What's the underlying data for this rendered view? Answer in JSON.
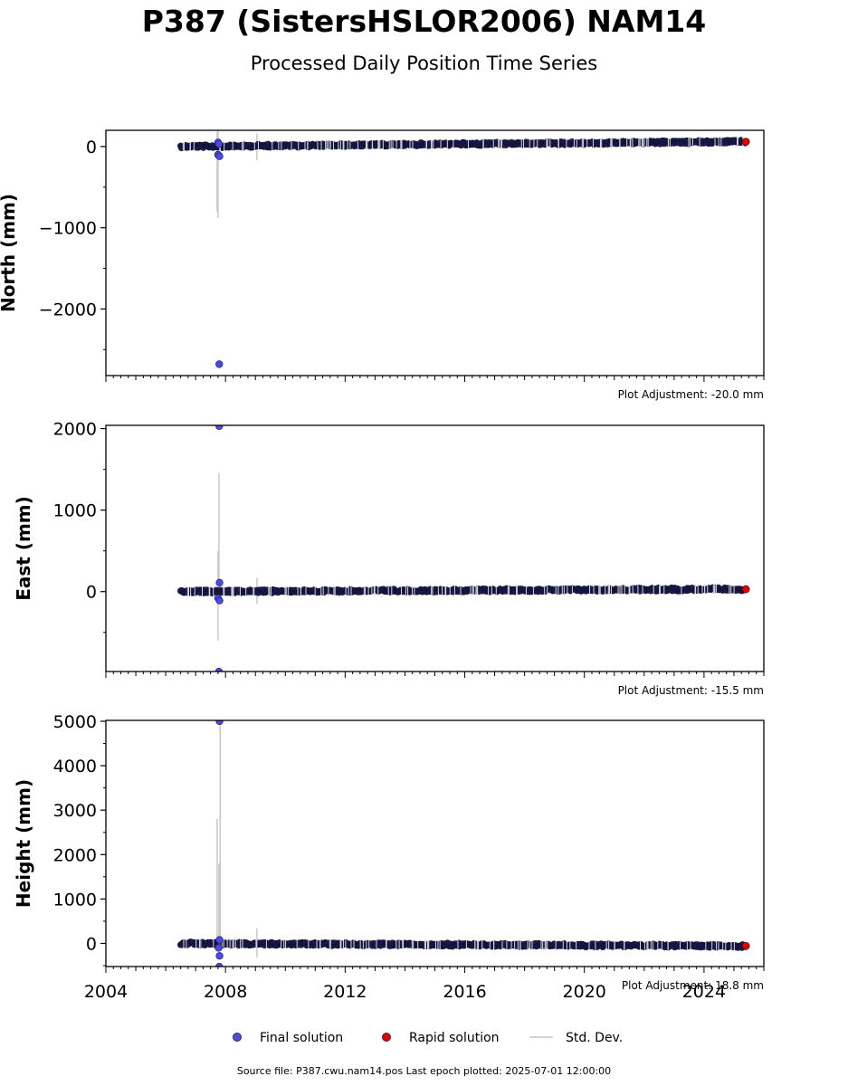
{
  "title": "P387 (SistersHSLOR2006) NAM14",
  "subtitle": "Processed Daily Position Time Series",
  "footer": "Source file: P387.cwu.nam14.pos  Last epoch plotted: 2025-07-01 12:00:00",
  "legend": {
    "final": {
      "label": "Final solution",
      "color": "#4a4ae8"
    },
    "rapid": {
      "label": "Rapid solution",
      "color": "#e00000"
    },
    "stddev": {
      "label": "Std. Dev.",
      "color": "#d3d3d3"
    }
  },
  "chart_data": [
    {
      "type": "scatter",
      "ylabel": "North (mm)",
      "xlim": [
        2004,
        2026
      ],
      "ylim": [
        -2820,
        200
      ],
      "yticks": [
        0,
        -1000,
        -2000
      ],
      "ytick_labels": [
        "0",
        "−1000",
        "−2000"
      ],
      "adjustment": "Plot Adjustment: -20.0 mm",
      "trend": {
        "start": [
          2006.5,
          0
        ],
        "end": [
          2025.4,
          60
        ],
        "scatter": 10
      },
      "outliers": [
        [
          2007.75,
          50
        ],
        [
          2007.78,
          30
        ],
        [
          2007.75,
          -100
        ],
        [
          2007.8,
          -120
        ],
        [
          2007.79,
          -2680
        ]
      ],
      "stddev_bars": [
        [
          2007.72,
          -800,
          180
        ],
        [
          2007.75,
          -880,
          200
        ],
        [
          2009.05,
          -170,
          160
        ]
      ],
      "rapid": [
        [
          2025.4,
          60
        ]
      ]
    },
    {
      "type": "scatter",
      "ylabel": "East (mm)",
      "xlim": [
        2004,
        2026
      ],
      "ylim": [
        -980,
        2040
      ],
      "yticks": [
        2000,
        1000,
        0
      ],
      "ytick_labels": [
        "2000",
        "1000",
        "0"
      ],
      "adjustment": "Plot Adjustment: -15.5 mm",
      "trend": {
        "start": [
          2006.5,
          0
        ],
        "end": [
          2025.4,
          30
        ],
        "scatter": 8
      },
      "outliers": [
        [
          2007.8,
          110
        ],
        [
          2007.75,
          -80
        ],
        [
          2007.8,
          -110
        ],
        [
          2007.79,
          2030
        ],
        [
          2007.78,
          -980
        ]
      ],
      "stddev_bars": [
        [
          2007.75,
          -600,
          500
        ],
        [
          2007.78,
          -100,
          1450
        ],
        [
          2009.05,
          -150,
          170
        ]
      ],
      "rapid": [
        [
          2025.4,
          30
        ]
      ]
    },
    {
      "type": "scatter",
      "ylabel": "Height (mm)",
      "xlim": [
        2004,
        2026
      ],
      "ylim": [
        -520,
        5020
      ],
      "yticks": [
        5000,
        4000,
        3000,
        2000,
        1000,
        0
      ],
      "ytick_labels": [
        "5000",
        "4000",
        "3000",
        "2000",
        "1000",
        "0"
      ],
      "adjustment": "Plot Adjustment: 18.8 mm",
      "trend": {
        "start": [
          2006.5,
          0
        ],
        "end": [
          2025.4,
          -60
        ],
        "scatter": 20
      },
      "outliers": [
        [
          2007.8,
          80
        ],
        [
          2007.77,
          -100
        ],
        [
          2007.8,
          -280
        ],
        [
          2007.79,
          -520
        ],
        [
          2007.8,
          5000
        ]
      ],
      "stddev_bars": [
        [
          2007.72,
          0,
          2800
        ],
        [
          2007.78,
          -200,
          1800
        ],
        [
          2007.82,
          0,
          5000
        ],
        [
          2009.05,
          -320,
          340
        ]
      ],
      "rapid": [
        [
          2025.4,
          -55
        ]
      ]
    }
  ],
  "xaxis": {
    "ticks": [
      2004,
      2008,
      2012,
      2016,
      2020,
      2024
    ],
    "tick_labels": [
      "2004",
      "2008",
      "2012",
      "2016",
      "2020",
      "2024"
    ]
  }
}
